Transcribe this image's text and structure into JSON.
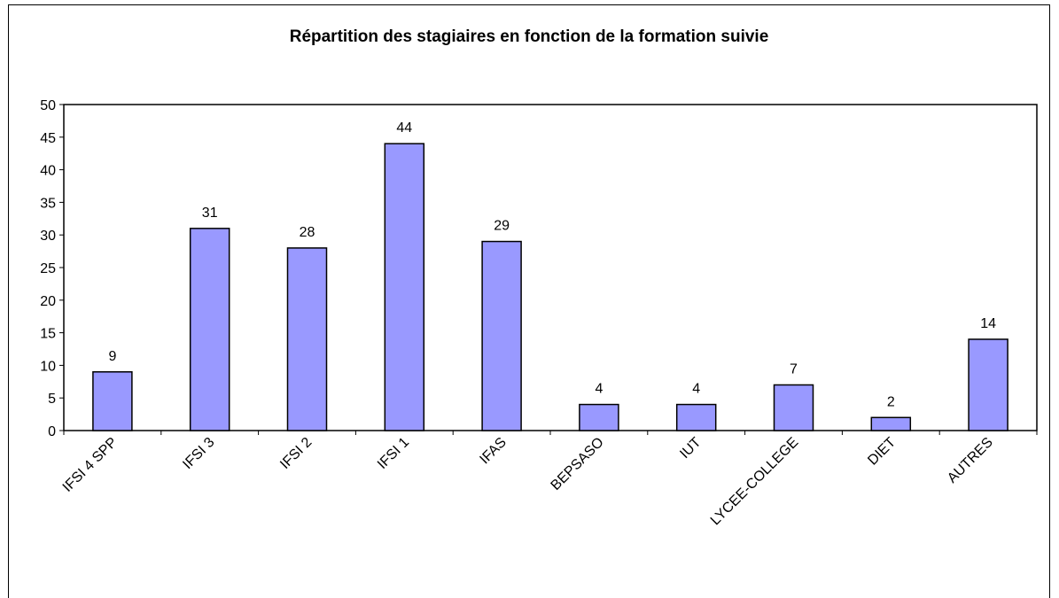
{
  "chart_data": {
    "type": "bar",
    "title": "Répartition des stagiaires en fonction de la formation suivie",
    "categories": [
      "IFSI 4 SPP",
      "IFSI 3",
      "IFSI 2",
      "IFSI 1",
      "IFAS",
      "BEPSASO",
      "IUT",
      "LYCEE-COLLEGE",
      "DIET",
      "AUTRES"
    ],
    "values": [
      9,
      31,
      28,
      44,
      29,
      4,
      4,
      7,
      2,
      14
    ],
    "color": "#9999ff",
    "ylim": [
      0,
      50
    ],
    "yticks": [
      0,
      5,
      10,
      15,
      20,
      25,
      30,
      35,
      40,
      45,
      50
    ],
    "grid": false
  }
}
